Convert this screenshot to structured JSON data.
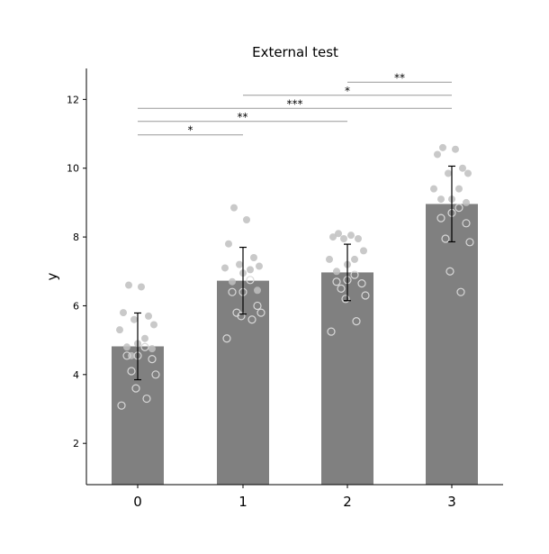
{
  "chart_data": {
    "type": "bar",
    "title": "External test",
    "xlabel": "",
    "ylabel": "y",
    "categories": [
      "0",
      "1",
      "2",
      "3"
    ],
    "values": [
      4.82,
      6.73,
      6.97,
      8.96
    ],
    "errors": [
      0.97,
      0.97,
      0.82,
      1.1
    ],
    "ylim": [
      0.8,
      12.9
    ],
    "yticks": [
      2,
      4,
      6,
      8,
      10,
      12
    ],
    "grid": false,
    "bar_color": "#808080",
    "point_color": "#c0c0c0",
    "points": [
      {
        "category": "0",
        "filled": [
          6.6,
          6.55,
          5.8,
          5.7,
          5.6,
          5.45,
          5.3,
          5.05,
          4.9,
          4.8,
          4.75,
          4.55
        ],
        "open": [
          4.8,
          4.55,
          4.55,
          4.45,
          4.1,
          4.0,
          3.6,
          3.3,
          3.1
        ]
      },
      {
        "category": "1",
        "filled": [
          8.85,
          8.5,
          7.8,
          7.4,
          7.2,
          7.15,
          7.1,
          7.05,
          6.95,
          6.7,
          6.45
        ],
        "open": [
          6.75,
          6.4,
          6.4,
          6.0,
          5.8,
          5.8,
          5.7,
          5.6,
          5.05
        ]
      },
      {
        "category": "2",
        "filled": [
          8.1,
          8.05,
          8.0,
          7.95,
          7.95,
          7.6,
          7.35,
          7.35,
          7.2,
          7.0
        ],
        "open": [
          6.9,
          6.75,
          6.7,
          6.65,
          6.5,
          6.3,
          6.2,
          5.55,
          5.25
        ]
      },
      {
        "category": "3",
        "filled": [
          10.6,
          10.55,
          10.4,
          10.0,
          9.85,
          9.85,
          9.4,
          9.4,
          9.1,
          9.1,
          9.0
        ],
        "open": [
          8.85,
          8.7,
          8.55,
          8.4,
          7.95,
          7.85,
          7.0,
          6.4
        ]
      }
    ],
    "significance": [
      {
        "from": "0",
        "to": "1",
        "label": "*",
        "y": 10.97
      },
      {
        "from": "0",
        "to": "2",
        "label": "**",
        "y": 11.36
      },
      {
        "from": "0",
        "to": "3",
        "label": "***",
        "y": 11.74
      },
      {
        "from": "1",
        "to": "3",
        "label": "*",
        "y": 12.12
      },
      {
        "from": "2",
        "to": "3",
        "label": "**",
        "y": 12.5
      }
    ]
  }
}
